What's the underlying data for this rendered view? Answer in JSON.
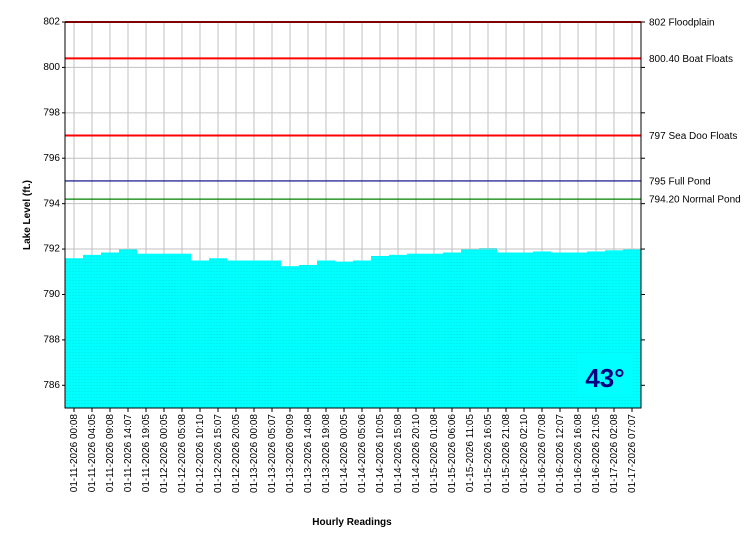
{
  "chart_data": {
    "type": "bar",
    "y_label": "Lake Level (ft.)",
    "x_label": "Hourly Readings",
    "color": "#00ffff",
    "categories": [
      "01-11-2026 00:08",
      "01-11-2026 04:05",
      "01-11-2026 09:08",
      "01-11-2026 14:07",
      "01-11-2026 19:05",
      "01-12-2026 00:05",
      "01-12-2026 05:08",
      "01-12-2026 10:10",
      "01-12-2026 15:07",
      "01-12-2026 20:05",
      "01-13-2026 00:08",
      "01-13-2026 05:07",
      "01-13-2026 09:09",
      "01-13-2026 14:08",
      "01-13-2026 19:08",
      "01-14-2026 00:05",
      "01-14-2026 05:06",
      "01-14-2026 10:05",
      "01-14-2026 15:08",
      "01-14-2026 20:10",
      "01-15-2026 01:08",
      "01-15-2026 06:06",
      "01-15-2026 11:05",
      "01-15-2026 16:05",
      "01-15-2026 21:08",
      "01-16-2026 02:10",
      "01-16-2026 07:08",
      "01-16-2026 12:07",
      "01-16-2026 16:08",
      "01-16-2026 21:05",
      "01-17-2026 02:08",
      "01-17-2026 07:07"
    ],
    "values": [
      791.6,
      791.75,
      791.85,
      792.0,
      791.8,
      791.8,
      791.8,
      791.5,
      791.6,
      791.5,
      791.5,
      791.5,
      791.25,
      791.3,
      791.5,
      791.45,
      791.5,
      791.7,
      791.75,
      791.8,
      791.8,
      791.85,
      792.0,
      792.05,
      791.85,
      791.85,
      791.9,
      791.85,
      791.85,
      791.9,
      791.95,
      792.0
    ],
    "ylim": [
      785,
      802
    ],
    "yticks": [
      786,
      788,
      790,
      792,
      794,
      796,
      798,
      800,
      802
    ],
    "grid": true,
    "reference_lines": [
      {
        "value": 802,
        "label": "802 Floodplain",
        "color": "#ff0000"
      },
      {
        "value": 800.4,
        "label": "800.40 Boat Floats",
        "color": "#ff0000"
      },
      {
        "value": 797,
        "label": "797 Sea Doo Floats",
        "color": "#ff0000"
      },
      {
        "value": 795,
        "label": "795 Full Pond",
        "color": "#000080"
      },
      {
        "value": 794.2,
        "label": "794.20 Normal Pond",
        "color": "#008000"
      }
    ],
    "temperature": "43°"
  }
}
